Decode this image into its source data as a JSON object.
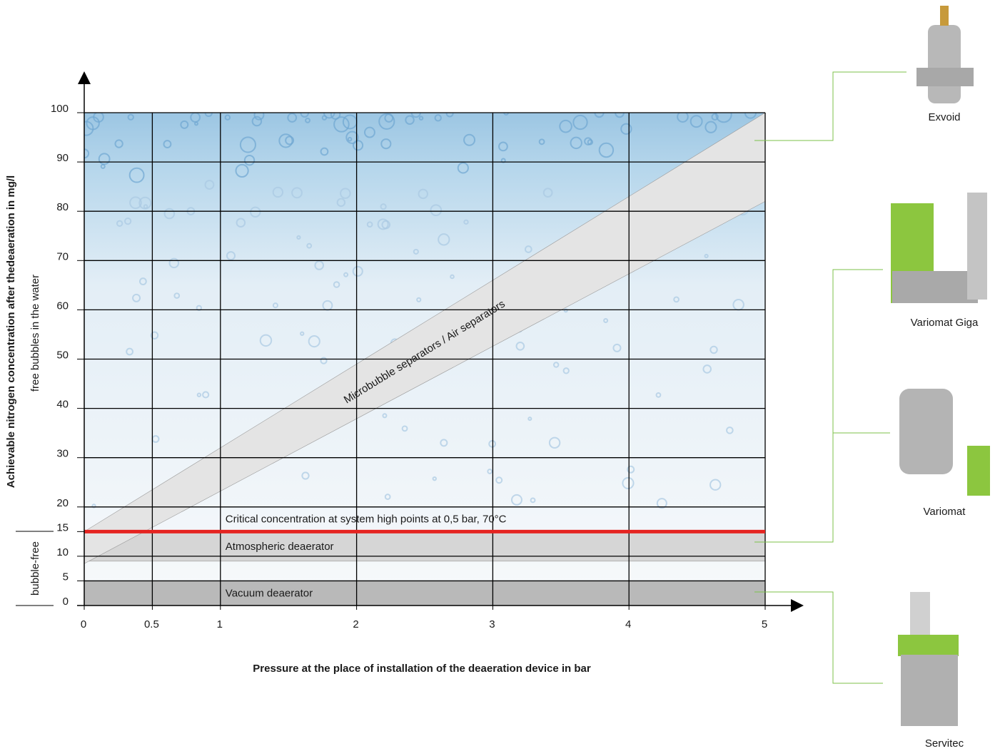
{
  "chart_data": {
    "type": "band",
    "y_label": "Achievable nitrogen concentration after thedeaeration in mg/l",
    "y_sublabel_upper": "free bubbles in the water",
    "y_sublabel_lower": "bubble-free",
    "x_label": "Pressure at the place of installation of the deaeration device in bar",
    "xlim": [
      0,
      5
    ],
    "xticks": [
      0,
      0.5,
      1,
      2,
      3,
      4,
      5
    ],
    "ylim": [
      0,
      100
    ],
    "yticks": [
      0,
      5,
      10,
      15,
      20,
      30,
      40,
      50,
      60,
      70,
      80,
      90,
      100
    ],
    "grid": true,
    "bands": [
      {
        "name": "Vacuum deaerator",
        "color": "#b9b9b9",
        "x": [
          0,
          5
        ],
        "lower": [
          0,
          0
        ],
        "upper": [
          5,
          5
        ]
      },
      {
        "name": "Atmospheric deaerator",
        "color": "#d6d6d6",
        "x": [
          0,
          5
        ],
        "lower": [
          9,
          9
        ],
        "upper": [
          15,
          15
        ]
      },
      {
        "name": "Microbubble separators / Air separators",
        "color": "#e4e4e4",
        "x": [
          0,
          5
        ],
        "lower": [
          8.5,
          82
        ],
        "upper": [
          15,
          100
        ]
      }
    ],
    "reference_line": {
      "name": "Critical concentration at system high points at 0,5 bar, 70°C",
      "value": 15,
      "color": "#e52421"
    }
  },
  "products": [
    {
      "name": "Exvoid"
    },
    {
      "name": "Variomat Giga"
    },
    {
      "name": "Variomat"
    },
    {
      "name": "Servitec"
    }
  ]
}
